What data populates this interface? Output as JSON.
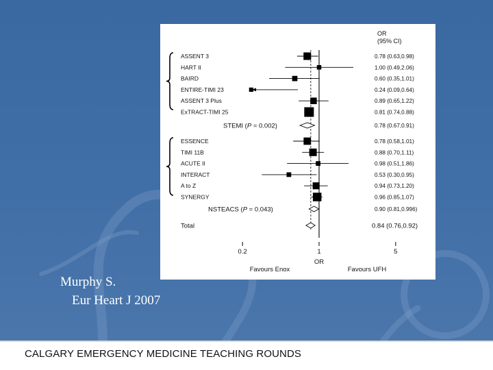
{
  "colors": {
    "slide_bg": "#3e6ca3",
    "marker": "#000000",
    "text": "#111111",
    "footer_text": "#111111"
  },
  "citation": {
    "author": "Murphy S.",
    "journal": "Eur Heart J 2007"
  },
  "footer": {
    "text": "CALGARY EMERGENCY MEDICINE TEACHING ROUNDS"
  },
  "chart_data": {
    "type": "forest",
    "column_header": [
      "OR",
      "(95% CI)"
    ],
    "x_axis": {
      "scale": "log",
      "ticks": [
        0.2,
        1,
        5
      ],
      "tick_labels": [
        "0.2",
        "1",
        "5"
      ],
      "label": "OR",
      "left_label": "Favours Enox",
      "right_label": "Favours UFH"
    },
    "reference_line": 1,
    "pooled_dashed_line": 0.84,
    "groups": [
      {
        "name": "STEMI",
        "studies": [
          {
            "label": "ASSENT 3",
            "or": 0.78,
            "lo": 0.63,
            "hi": 0.98,
            "ci_text": "0.78 (0.63,0.98)",
            "weight": 1.0
          },
          {
            "label": "HART II",
            "or": 1.0,
            "lo": 0.49,
            "hi": 2.06,
            "ci_text": "1.00 (0.49,2.06)",
            "weight": 0.25
          },
          {
            "label": "BAIRD",
            "or": 0.6,
            "lo": 0.35,
            "hi": 1.01,
            "ci_text": "0.60 (0.35,1.01)",
            "weight": 0.45
          },
          {
            "label": "ENTIRE-TIMI 23",
            "or": 0.24,
            "lo": 0.09,
            "hi": 0.64,
            "ci_text": "0.24 (0.09,0.64)",
            "weight": 0.2,
            "arrow_left": true
          },
          {
            "label": "ASSENT 3 Plus",
            "or": 0.89,
            "lo": 0.65,
            "hi": 1.22,
            "ci_text": "0.89 (0.65,1.22)",
            "weight": 0.75
          },
          {
            "label": "ExTRACT-TIMI 25",
            "or": 0.81,
            "lo": 0.74,
            "hi": 0.88,
            "ci_text": "0.81 (0.74,0.88)",
            "weight": 1.5
          }
        ],
        "summary": {
          "label": "STEMI",
          "p_text": "0.002",
          "or": 0.78,
          "lo": 0.67,
          "hi": 0.91,
          "ci_text": "0.78 (0.67,0.91)"
        }
      },
      {
        "name": "NSTEACS",
        "studies": [
          {
            "label": "ESSENCE",
            "or": 0.78,
            "lo": 0.58,
            "hi": 1.01,
            "ci_text": "0.78 (0.58,1.01)",
            "weight": 0.95
          },
          {
            "label": "TIMI 11B",
            "or": 0.88,
            "lo": 0.7,
            "hi": 1.11,
            "ci_text": "0.88 (0.70,1.11)",
            "weight": 1.0
          },
          {
            "label": "ACUTE II",
            "or": 0.98,
            "lo": 0.51,
            "hi": 1.86,
            "ci_text": "0.98 (0.51,1.86)",
            "weight": 0.3
          },
          {
            "label": "INTERACT",
            "or": 0.53,
            "lo": 0.3,
            "hi": 0.95,
            "ci_text": "0.53 (0.30,0.95)",
            "weight": 0.3
          },
          {
            "label": "A to Z",
            "or": 0.94,
            "lo": 0.73,
            "hi": 1.2,
            "ci_text": "0.94 (0.73,1.20)",
            "weight": 0.85
          },
          {
            "label": "SYNERGY",
            "or": 0.96,
            "lo": 0.85,
            "hi": 1.07,
            "ci_text": "0.96 (0.85,1.07)",
            "weight": 1.25
          }
        ],
        "summary": {
          "label": "NSTEACS",
          "p_text": "0.043",
          "or": 0.9,
          "lo": 0.81,
          "hi": 0.996,
          "ci_text": "0.90 (0.81,0.996)"
        }
      }
    ],
    "total": {
      "label": "Total",
      "or": 0.84,
      "lo": 0.76,
      "hi": 0.92,
      "ci_text": "0.84 (0.76,0.92)"
    }
  }
}
